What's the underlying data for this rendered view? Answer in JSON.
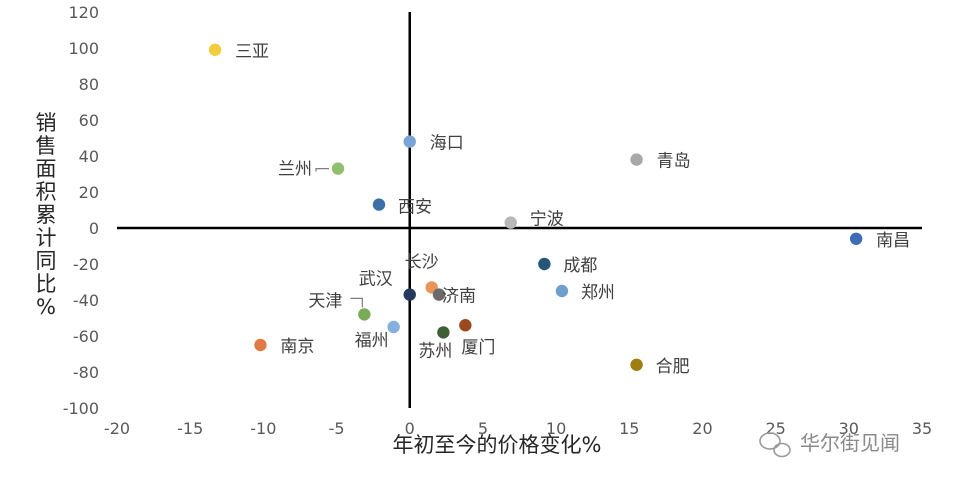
{
  "chart_data": {
    "type": "scatter",
    "xlabel": "年初至今的价格变化%",
    "ylabel": "销售面积累计同比%",
    "xlim": [
      -20,
      35
    ],
    "ylim": [
      -100,
      120
    ],
    "x_ticks": [
      -20,
      -15,
      -10,
      -5,
      0,
      5,
      10,
      15,
      20,
      25,
      30,
      35
    ],
    "y_ticks": [
      120,
      100,
      80,
      60,
      40,
      20,
      0,
      -20,
      -40,
      -60,
      -80,
      -100
    ],
    "grid": false,
    "points": [
      {
        "label": "三亚",
        "x": -13.3,
        "y": 99,
        "color": "#f2cc3b"
      },
      {
        "label": "海口",
        "x": 0.0,
        "y": 48,
        "color": "#7aa3d6"
      },
      {
        "label": "兰州",
        "x": -4.9,
        "y": 33,
        "color": "#8fbf6f"
      },
      {
        "label": "西安",
        "x": -2.1,
        "y": 13,
        "color": "#3a72a8"
      },
      {
        "label": "宁波",
        "x": 6.9,
        "y": 3,
        "color": "#b8b8b8"
      },
      {
        "label": "青岛",
        "x": 15.5,
        "y": 38,
        "color": "#a8a8a8"
      },
      {
        "label": "南昌",
        "x": 30.5,
        "y": -6,
        "color": "#3e6db5"
      },
      {
        "label": "成都",
        "x": 9.2,
        "y": -20,
        "color": "#245778"
      },
      {
        "label": "郑州",
        "x": 10.4,
        "y": -35,
        "color": "#6f9fcf"
      },
      {
        "label": "长沙",
        "x": 1.5,
        "y": -33,
        "color": "#e8955a"
      },
      {
        "label": "武汉",
        "x": 0.0,
        "y": -37,
        "color": "#253a5e"
      },
      {
        "label": "济南",
        "x": 2.0,
        "y": -37,
        "color": "#6a6a6a"
      },
      {
        "label": "天津",
        "x": -3.1,
        "y": -48,
        "color": "#7aab58"
      },
      {
        "label": "福州",
        "x": -1.1,
        "y": -55,
        "color": "#86b0de"
      },
      {
        "label": "苏州",
        "x": 2.3,
        "y": -58,
        "color": "#3f5f34"
      },
      {
        "label": "厦门",
        "x": 3.8,
        "y": -54,
        "color": "#9a4a1e"
      },
      {
        "label": "南京",
        "x": -10.2,
        "y": -65,
        "color": "#e07b45"
      },
      {
        "label": "合肥",
        "x": 15.5,
        "y": -76,
        "color": "#9e7e12"
      }
    ]
  },
  "watermark": "华尔街见闻"
}
